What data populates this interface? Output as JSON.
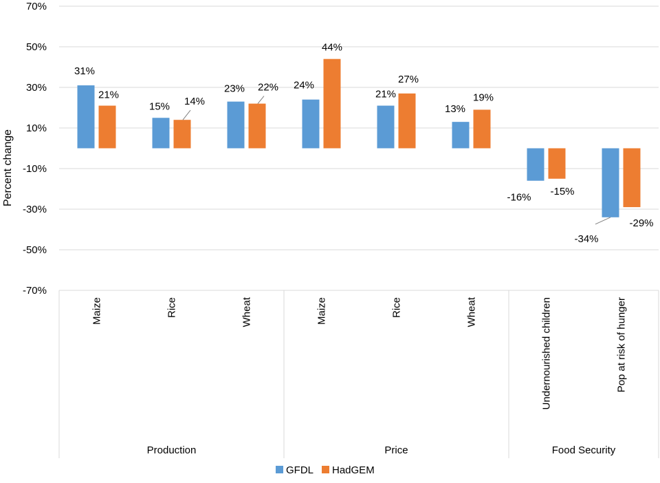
{
  "chart_data": {
    "type": "bar",
    "title": "",
    "ylabel": "Percent change",
    "xlabel": "",
    "ylim": [
      -70,
      70
    ],
    "yticks": [
      70,
      50,
      30,
      10,
      -10,
      -30,
      -50,
      -70
    ],
    "ytick_labels": [
      "70%",
      "50%",
      "30%",
      "10%",
      "-10%",
      "-30%",
      "-50%",
      "-70%"
    ],
    "groups": [
      {
        "label": "Production",
        "categories": [
          "Maize",
          "Rice",
          "Wheat"
        ]
      },
      {
        "label": "Price",
        "categories": [
          "Maize",
          "Rice",
          "Wheat"
        ]
      },
      {
        "label": "Food Security",
        "categories": [
          "Undernourished children",
          "Pop at risk of hunger"
        ]
      }
    ],
    "categories": [
      "Maize",
      "Rice",
      "Wheat",
      "Maize",
      "Rice",
      "Wheat",
      "Undernourished children",
      "Pop at risk of hunger"
    ],
    "series": [
      {
        "name": "GFDL",
        "color": "#5B9BD5",
        "values": [
          31,
          15,
          23,
          24,
          21,
          13,
          -16,
          -34
        ],
        "labels": [
          "31%",
          "15%",
          "23%",
          "24%",
          "21%",
          "13%",
          "-16%",
          "-34%"
        ]
      },
      {
        "name": "HadGEM",
        "color": "#ED7D31",
        "values": [
          21,
          14,
          22,
          44,
          27,
          19,
          -15,
          -29
        ],
        "labels": [
          "21%",
          "14%",
          "22%",
          "44%",
          "27%",
          "19%",
          "-15%",
          "-29%"
        ]
      }
    ],
    "legend_position": "bottom",
    "grid": true
  }
}
